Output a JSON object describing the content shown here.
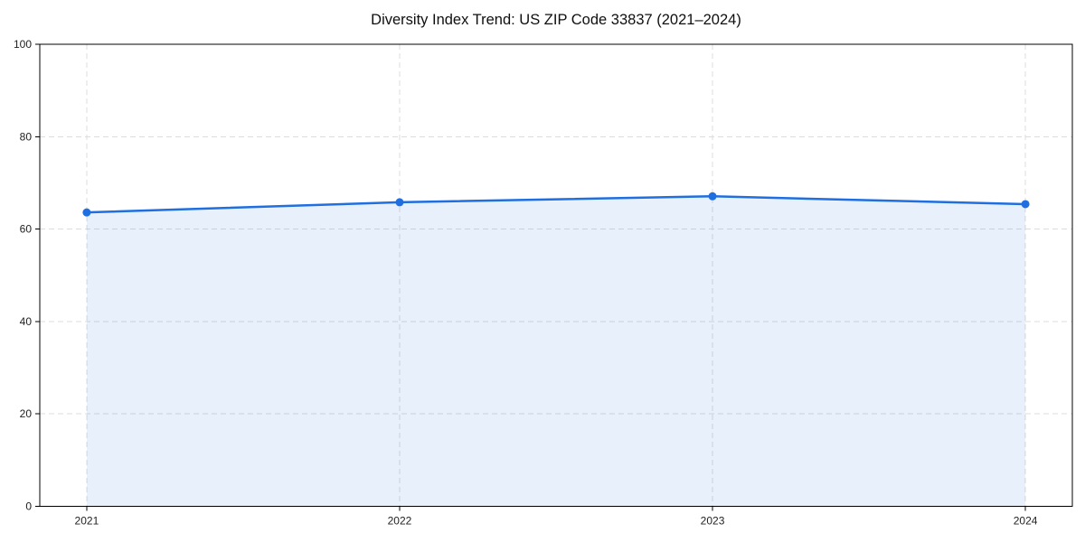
{
  "chart_data": {
    "type": "area",
    "title": "Diversity Index Trend: US ZIP Code 33837 (2021–2024)",
    "x": [
      2021,
      2022,
      2023,
      2024
    ],
    "series": [
      {
        "name": "Diversity Index",
        "values": [
          63.6,
          65.8,
          67.1,
          65.4
        ]
      }
    ],
    "xlabel": "",
    "ylabel": "",
    "xticks": [
      2021,
      2022,
      2023,
      2024
    ],
    "yticks": [
      0,
      20,
      40,
      60,
      80,
      100
    ],
    "ylim": [
      0,
      100
    ],
    "x_margin_frac": 0.05,
    "grid": true,
    "grid_style": "dashed",
    "legend_position": "none",
    "colors": {
      "line": "#1f6fe0",
      "marker": "#1f6fe0",
      "fill": "rgba(31,111,224,0.10)",
      "grid": "#dcdcdc",
      "spine": "#000000",
      "tick_label": "#1f1f1f",
      "background": "#ffffff"
    }
  }
}
